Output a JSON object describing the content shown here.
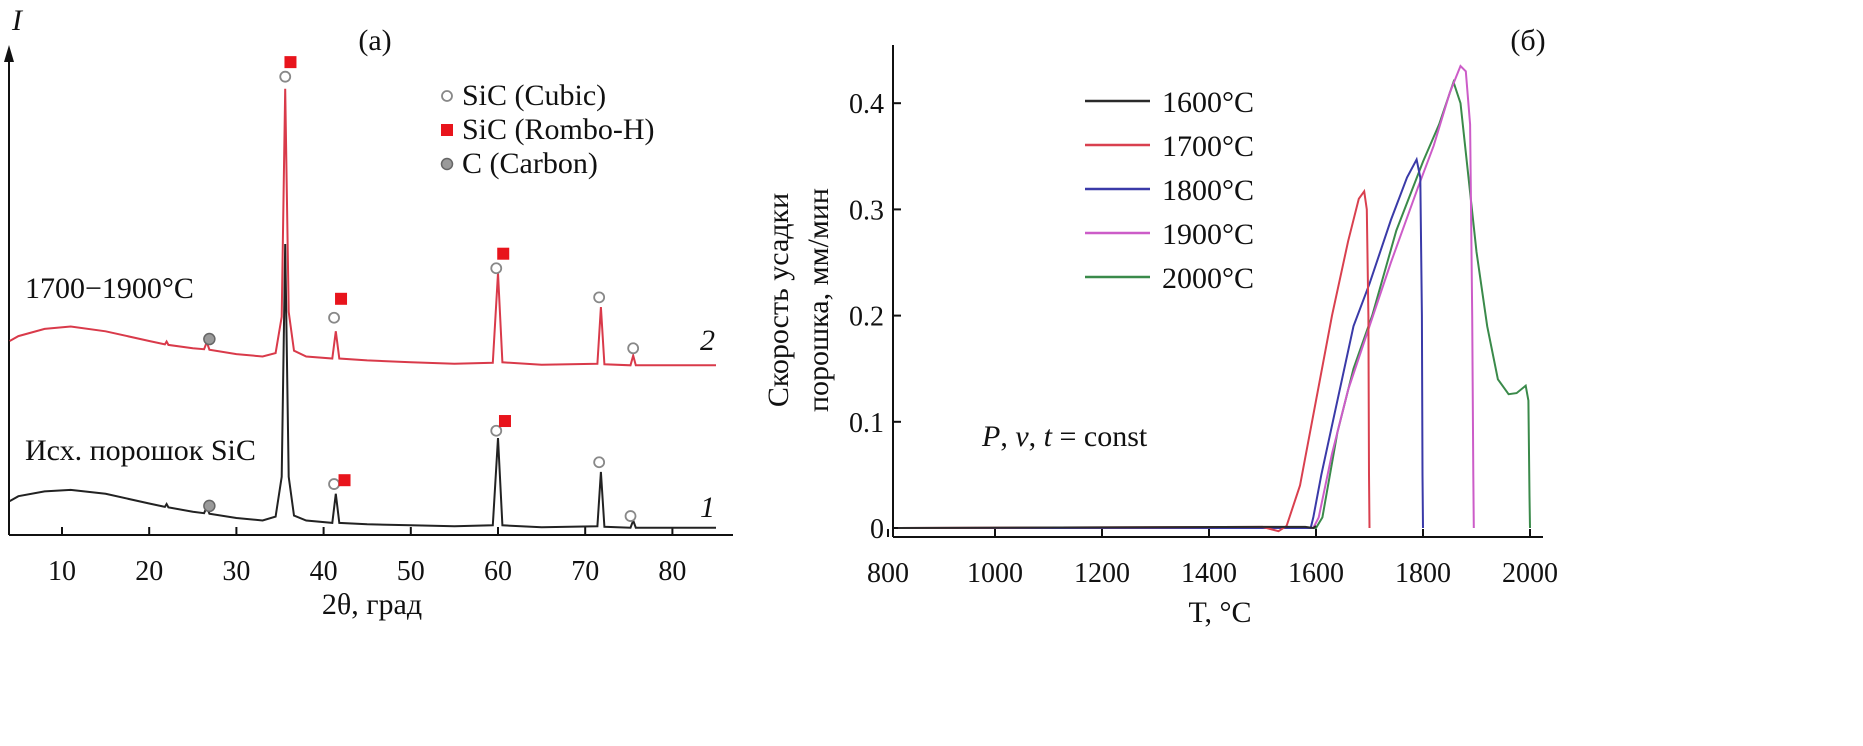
{
  "chart_data": [
    {
      "type": "line",
      "panel_label": "(a)",
      "xlabel": "2θ, град",
      "ylabel": "I",
      "xlim": [
        4,
        85
      ],
      "ylim": [
        0,
        100
      ],
      "xticks": [
        10,
        20,
        30,
        40,
        50,
        60,
        70,
        80
      ],
      "grid": false,
      "legend_position": "top-right",
      "legend": [
        {
          "label": "SiC (Cubic)",
          "marker": "open-circle",
          "color": "#888888"
        },
        {
          "label": "SiC (Rombo-H)",
          "marker": "filled-square",
          "color": "#e8141c"
        },
        {
          "label": "C (Carbon)",
          "marker": "filled-circle",
          "color": "#8c8c8c"
        }
      ],
      "series": [
        {
          "curve_number": "2",
          "label": "1700−1900°C",
          "color": "#d93a4a",
          "points": [
            [
              4,
              40
            ],
            [
              5,
              41
            ],
            [
              8,
              42.5
            ],
            [
              11,
              43
            ],
            [
              15,
              42
            ],
            [
              20,
              40
            ],
            [
              21.8,
              39.3
            ],
            [
              22,
              39.9
            ],
            [
              22.2,
              39.2
            ],
            [
              25,
              38.5
            ],
            [
              26.3,
              38.3
            ],
            [
              26.6,
              39.8
            ],
            [
              26.9,
              38.2
            ],
            [
              30,
              37.3
            ],
            [
              33,
              36.8
            ],
            [
              34.5,
              37.5
            ],
            [
              35.2,
              45
            ],
            [
              35.6,
              92
            ],
            [
              36,
              46
            ],
            [
              36.6,
              38
            ],
            [
              38,
              36.8
            ],
            [
              41,
              36.4
            ],
            [
              41.4,
              42
            ],
            [
              41.8,
              36.4
            ],
            [
              45,
              36
            ],
            [
              50,
              35.6
            ],
            [
              55,
              35.3
            ],
            [
              59.4,
              35.5
            ],
            [
              60,
              54
            ],
            [
              60.5,
              35.6
            ],
            [
              65,
              35.1
            ],
            [
              71.4,
              35.3
            ],
            [
              71.8,
              47
            ],
            [
              72.2,
              35.2
            ],
            [
              75.2,
              35
            ],
            [
              75.5,
              37
            ],
            [
              75.8,
              35
            ],
            [
              85,
              35
            ]
          ],
          "markers": [
            [
              "open-circle",
              35.6,
              94.5
            ],
            [
              "filled-square",
              36.2,
              97.5
            ],
            [
              "filled-circle",
              26.9,
              40.4
            ],
            [
              "open-circle",
              41.2,
              44.8
            ],
            [
              "filled-square",
              42.0,
              48.7
            ],
            [
              "open-circle",
              59.8,
              55
            ],
            [
              "filled-square",
              60.6,
              58
            ],
            [
              "open-circle",
              71.6,
              49
            ],
            [
              "open-circle",
              75.5,
              38.5
            ]
          ]
        },
        {
          "curve_number": "1",
          "label": "Исх. порошок SiC",
          "color": "#222222",
          "points": [
            [
              4,
              7
            ],
            [
              5,
              8
            ],
            [
              8,
              9
            ],
            [
              11,
              9.3
            ],
            [
              15,
              8.5
            ],
            [
              20,
              6.5
            ],
            [
              21.8,
              5.8
            ],
            [
              22,
              6.4
            ],
            [
              22.2,
              5.7
            ],
            [
              25,
              4.8
            ],
            [
              26.3,
              4.5
            ],
            [
              26.6,
              5.8
            ],
            [
              26.9,
              4.4
            ],
            [
              30,
              3.5
            ],
            [
              33,
              3
            ],
            [
              34.5,
              3.8
            ],
            [
              35.2,
              12
            ],
            [
              35.6,
              60
            ],
            [
              36,
              12
            ],
            [
              36.6,
              4
            ],
            [
              38,
              3
            ],
            [
              41,
              2.5
            ],
            [
              41.4,
              8.5
            ],
            [
              41.8,
              2.5
            ],
            [
              45,
              2.2
            ],
            [
              50,
              2
            ],
            [
              55,
              1.8
            ],
            [
              59.4,
              2
            ],
            [
              60,
              20
            ],
            [
              60.5,
              2
            ],
            [
              65,
              1.6
            ],
            [
              71.4,
              1.8
            ],
            [
              71.8,
              13
            ],
            [
              72.2,
              1.7
            ],
            [
              75.2,
              1.5
            ],
            [
              75.5,
              3
            ],
            [
              75.8,
              1.5
            ],
            [
              85,
              1.5
            ]
          ],
          "markers": [
            [
              "filled-circle",
              26.9,
              6
            ],
            [
              "open-circle",
              41.2,
              10.5
            ],
            [
              "filled-square",
              42.4,
              11.3
            ],
            [
              "open-circle",
              59.8,
              21.5
            ],
            [
              "filled-square",
              60.8,
              23.5
            ],
            [
              "open-circle",
              71.6,
              15
            ],
            [
              "open-circle",
              75.2,
              3.9
            ]
          ]
        }
      ]
    },
    {
      "type": "line",
      "panel_label": "(б)",
      "xlabel": "T, °C",
      "ylabel": [
        "Скорость усадки",
        "порошка, мм/мин"
      ],
      "xlim": [
        800,
        2010
      ],
      "ylim": [
        0,
        0.44
      ],
      "xticks": [
        800,
        1000,
        1200,
        1400,
        1600,
        1800,
        2000
      ],
      "yticks": [
        0,
        0.1,
        0.2,
        0.3,
        0.4
      ],
      "grid": false,
      "legend_position": "top-left",
      "annotation": "P, v, t = const",
      "series": [
        {
          "name": "1600°C",
          "color": "#2a2a2a",
          "points": [
            [
              820,
              0
            ],
            [
              1500,
              0.001
            ],
            [
              1580,
              0.001
            ],
            [
              1595,
              0.0
            ],
            [
              1600,
              0.002
            ]
          ]
        },
        {
          "name": "1700°C",
          "color": "#d9404f",
          "points": [
            [
              820,
              0
            ],
            [
              1500,
              0.001
            ],
            [
              1530,
              -0.003
            ],
            [
              1545,
              0.002
            ],
            [
              1570,
              0.04
            ],
            [
              1600,
              0.12
            ],
            [
              1630,
              0.2
            ],
            [
              1660,
              0.27
            ],
            [
              1680,
              0.31
            ],
            [
              1690,
              0.317
            ],
            [
              1695,
              0.3
            ],
            [
              1698,
              0.2
            ],
            [
              1699,
              0.05
            ],
            [
              1700,
              0
            ]
          ]
        },
        {
          "name": "1800°C",
          "color": "#3a3aa8",
          "points": [
            [
              820,
              0
            ],
            [
              1590,
              0
            ],
            [
              1595,
              0.01
            ],
            [
              1610,
              0.05
            ],
            [
              1640,
              0.12
            ],
            [
              1670,
              0.19
            ],
            [
              1700,
              0.23
            ],
            [
              1740,
              0.29
            ],
            [
              1770,
              0.33
            ],
            [
              1788,
              0.347
            ],
            [
              1795,
              0.33
            ],
            [
              1798,
              0.2
            ],
            [
              1799,
              0.05
            ],
            [
              1800,
              0
            ]
          ]
        },
        {
          "name": "1900°C",
          "color": "#cc5cc8",
          "points": [
            [
              820,
              0
            ],
            [
              1595,
              0
            ],
            [
              1605,
              0.01
            ],
            [
              1630,
              0.07
            ],
            [
              1660,
              0.13
            ],
            [
              1700,
              0.19
            ],
            [
              1740,
              0.25
            ],
            [
              1790,
              0.32
            ],
            [
              1820,
              0.36
            ],
            [
              1850,
              0.41
            ],
            [
              1870,
              0.435
            ],
            [
              1880,
              0.43
            ],
            [
              1888,
              0.38
            ],
            [
              1892,
              0.2
            ],
            [
              1894,
              0.05
            ],
            [
              1895,
              0
            ]
          ]
        },
        {
          "name": "2000°C",
          "color": "#3a8a4a",
          "points": [
            [
              820,
              0
            ],
            [
              1600,
              0
            ],
            [
              1612,
              0.01
            ],
            [
              1640,
              0.09
            ],
            [
              1670,
              0.15
            ],
            [
              1705,
              0.2
            ],
            [
              1750,
              0.28
            ],
            [
              1800,
              0.345
            ],
            [
              1830,
              0.38
            ],
            [
              1857,
              0.42
            ],
            [
              1870,
              0.4
            ],
            [
              1885,
              0.33
            ],
            [
              1900,
              0.26
            ],
            [
              1920,
              0.19
            ],
            [
              1940,
              0.14
            ],
            [
              1960,
              0.126
            ],
            [
              1975,
              0.127
            ],
            [
              1992,
              0.134
            ],
            [
              1997,
              0.12
            ],
            [
              1999,
              0.03
            ],
            [
              2000,
              0
            ]
          ]
        }
      ]
    }
  ]
}
